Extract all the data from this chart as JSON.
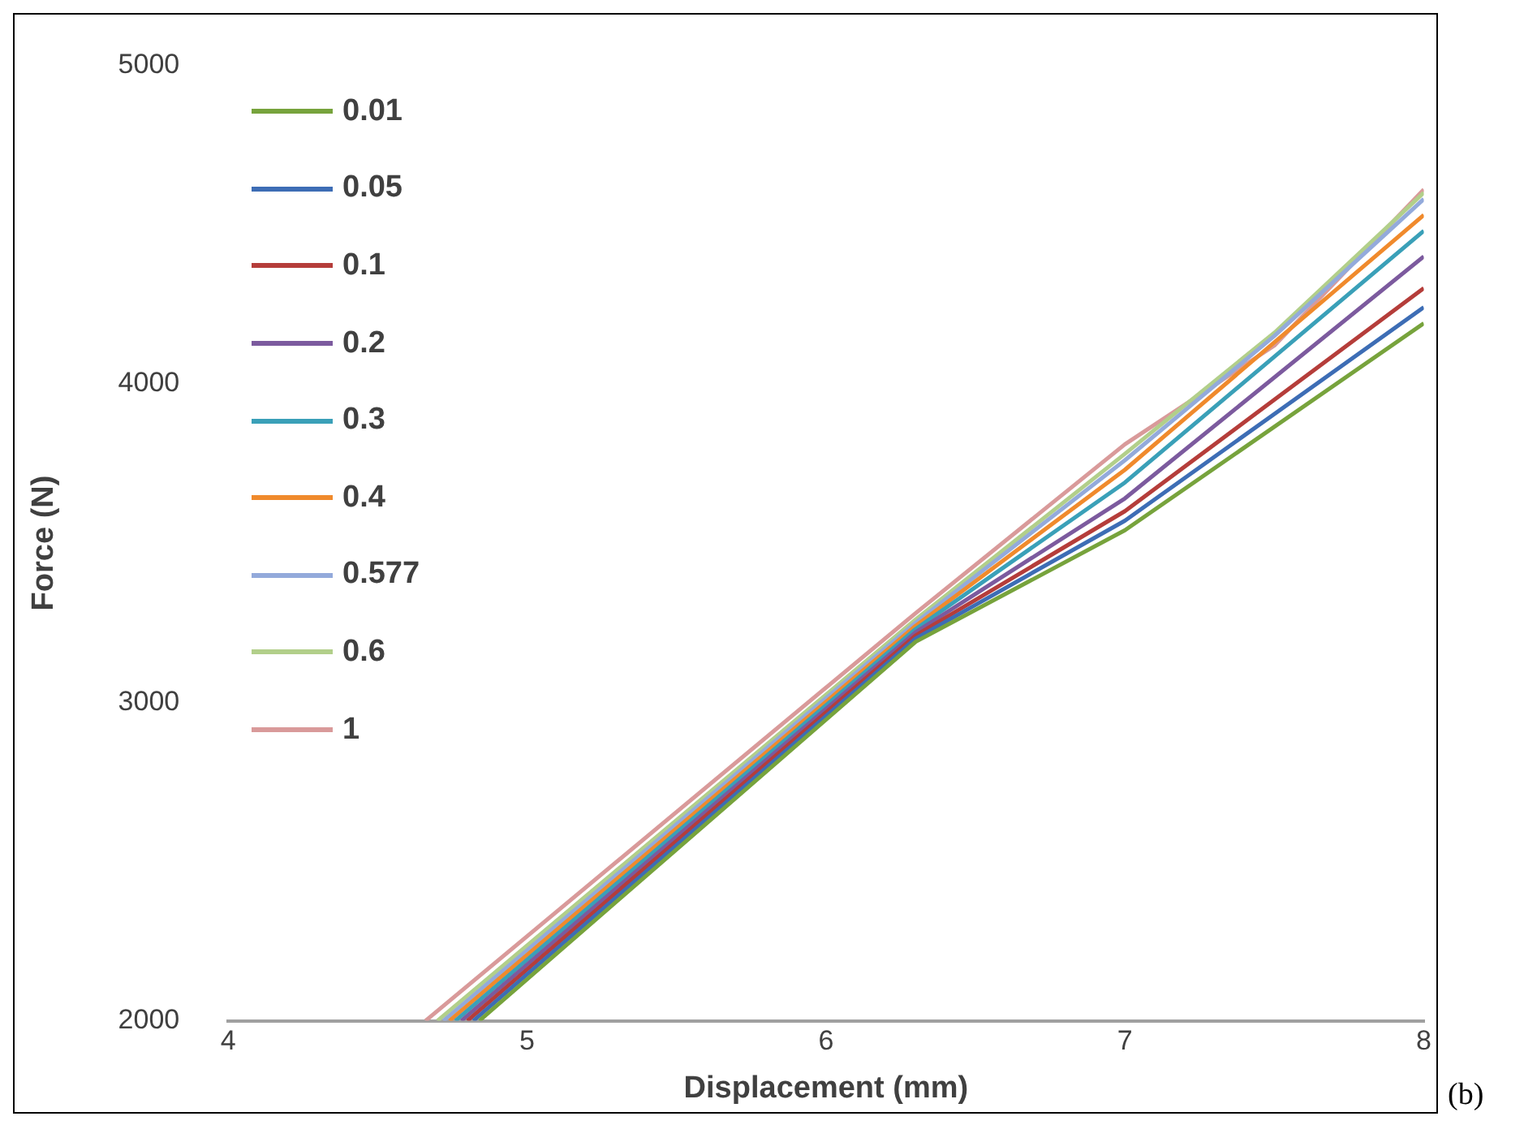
{
  "chart_data": {
    "type": "line",
    "xlabel": "Displacement (mm)",
    "ylabel": "Force (N)",
    "xlim": [
      4,
      8
    ],
    "xticks": [
      4,
      5,
      6,
      7,
      8
    ],
    "ylim": [
      2000,
      5000
    ],
    "yticks": [
      2000,
      3000,
      4000,
      5000
    ],
    "grid": false,
    "legend": "top left",
    "marker": "none",
    "line_style": "solid",
    "annotations": [
      "(b)"
    ],
    "series": [
      {
        "name": "0.01",
        "color": "#77a33c",
        "x": [
          4.84,
          6.3,
          7,
          8
        ],
        "values": [
          2000,
          3190,
          3540,
          4190
        ]
      },
      {
        "name": "0.05",
        "color": "#3d6db5",
        "x": [
          4.82,
          6.3,
          7,
          8
        ],
        "values": [
          2000,
          3200,
          3570,
          4240
        ]
      },
      {
        "name": "0.1",
        "color": "#b53d3a",
        "x": [
          4.8,
          6.3,
          7,
          8
        ],
        "values": [
          2000,
          3210,
          3600,
          4300
        ]
      },
      {
        "name": "0.2",
        "color": "#7c5a9e",
        "x": [
          4.78,
          6.3,
          7,
          8
        ],
        "values": [
          2000,
          3220,
          3640,
          4400
        ]
      },
      {
        "name": "0.3",
        "color": "#3aa0b8",
        "x": [
          4.76,
          6.3,
          7,
          8
        ],
        "values": [
          2000,
          3230,
          3690,
          4480
        ]
      },
      {
        "name": "0.4",
        "color": "#f08a2c",
        "x": [
          4.74,
          6.3,
          7,
          8
        ],
        "values": [
          2000,
          3240,
          3730,
          4530
        ]
      },
      {
        "name": "0.577",
        "color": "#93aadb",
        "x": [
          4.72,
          6.3,
          7,
          7.5,
          8
        ],
        "values": [
          2000,
          3250,
          3760,
          4150,
          4580
        ]
      },
      {
        "name": "0.6",
        "color": "#b2cf8a",
        "x": [
          4.7,
          6.3,
          7,
          7.5,
          8
        ],
        "values": [
          2000,
          3260,
          3780,
          4160,
          4600
        ]
      },
      {
        "name": "1",
        "color": "#d99a9a",
        "x": [
          4.66,
          6.3,
          7,
          7.5,
          8
        ],
        "values": [
          2000,
          3280,
          3810,
          4120,
          4610
        ]
      }
    ]
  }
}
